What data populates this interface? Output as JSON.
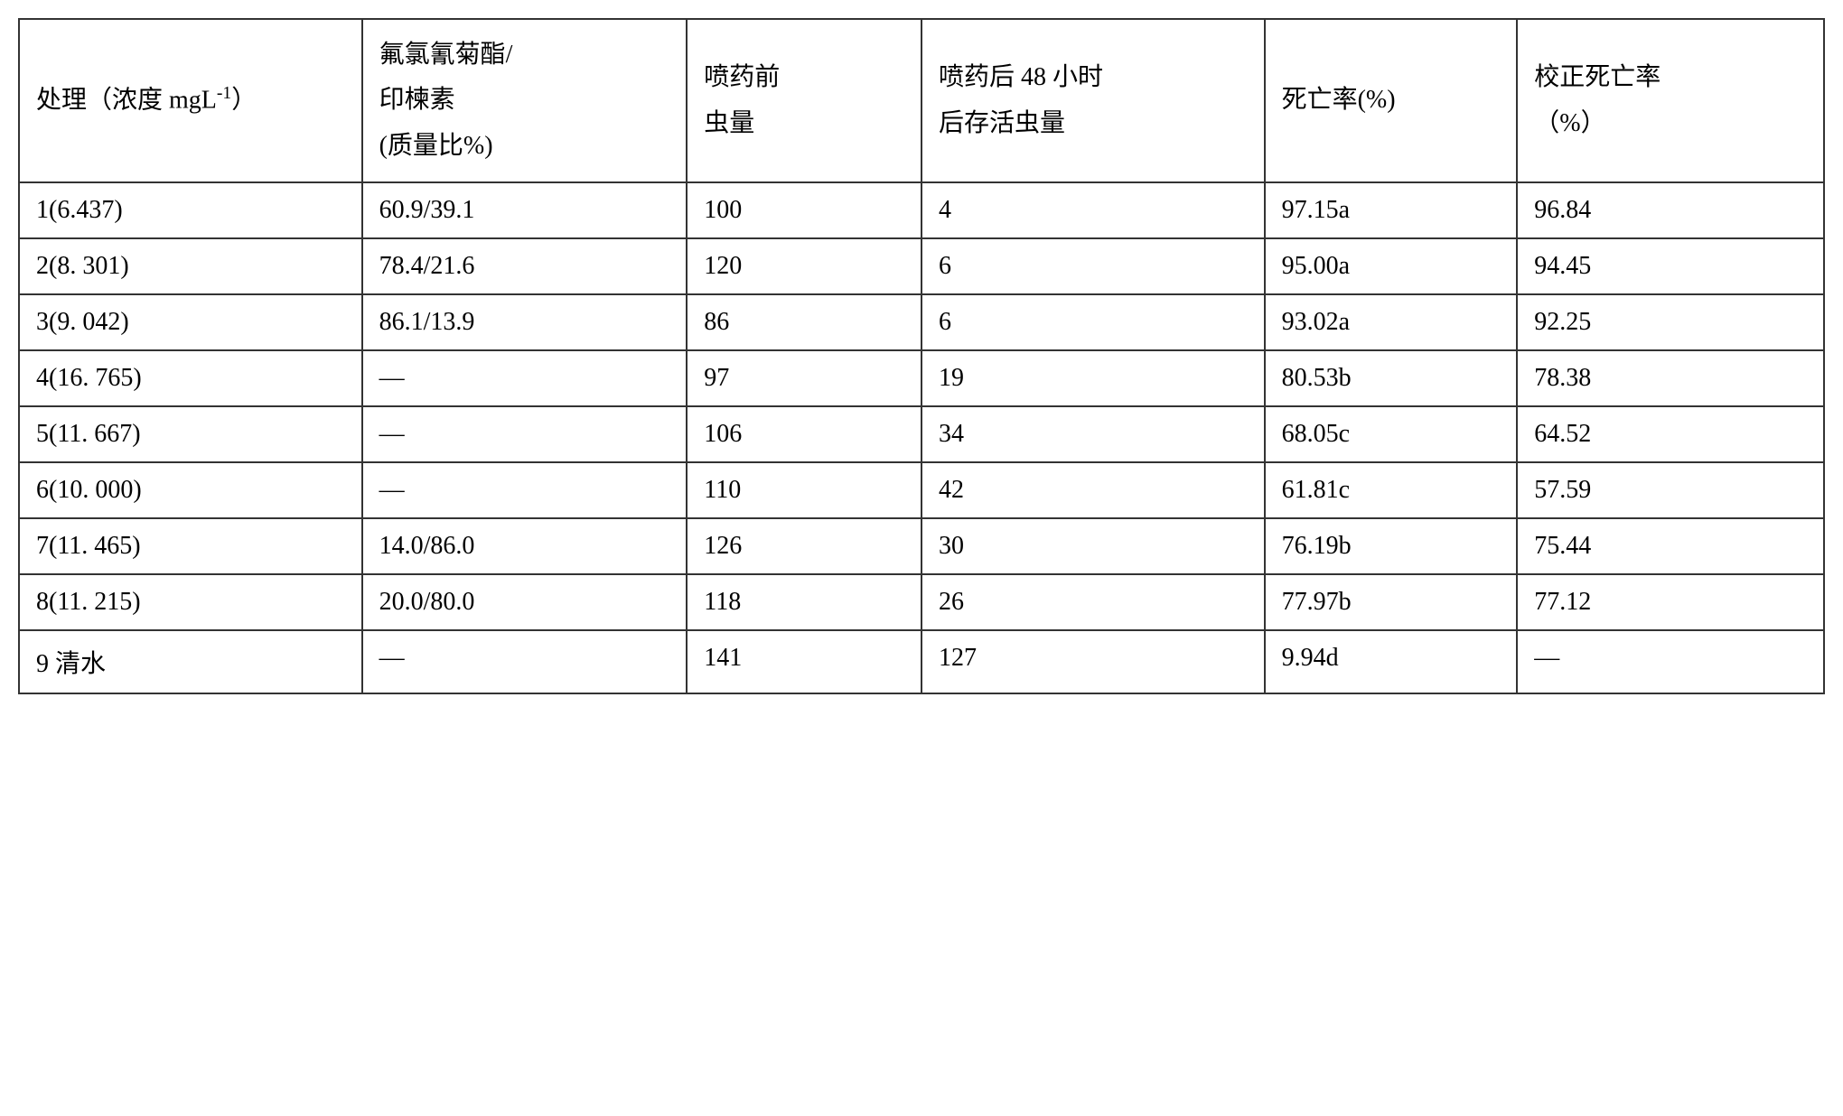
{
  "table": {
    "columns": [
      {
        "label_html": "处理（浓度 mgL<sup>-1</sup>）"
      },
      {
        "label_html": "氟氯氰菊酯/<br>印楝素<br>(质量比%)"
      },
      {
        "label_html": "喷药前<br>虫量"
      },
      {
        "label_html": "喷药后 48 小时<br>后存活虫量"
      },
      {
        "label_html": "死亡率(%)"
      },
      {
        "label_html": "校正死亡率<br>（%）"
      }
    ],
    "rows": [
      [
        "1(6.437)",
        "60.9/39.1",
        "100",
        "4",
        "97.15a",
        "96.84"
      ],
      [
        "2(8. 301)",
        "78.4/21.6",
        "120",
        "6",
        "95.00a",
        "94.45"
      ],
      [
        "3(9. 042)",
        "86.1/13.9",
        "86",
        "6",
        "93.02a",
        "92.25"
      ],
      [
        "4(16. 765)",
        "—",
        "97",
        "19",
        "80.53b",
        "78.38"
      ],
      [
        "5(11. 667)",
        "—",
        "106",
        "34",
        "68.05c",
        "64.52"
      ],
      [
        "6(10. 000)",
        "—",
        "110",
        "42",
        "61.81c",
        "57.59"
      ],
      [
        "7(11. 465)",
        "14.0/86.0",
        "126",
        "30",
        "76.19b",
        "75.44"
      ],
      [
        "8(11. 215)",
        "20.0/80.0",
        "118",
        "26",
        "77.97b",
        "77.12"
      ],
      [
        "9 清水",
        "—",
        "141",
        "127",
        "9.94d",
        "—"
      ]
    ],
    "border_color": "#333333",
    "background_color": "#ffffff",
    "text_color": "#000000",
    "font_size": 28,
    "cell_padding": "14px 18px",
    "border_width": 2
  }
}
